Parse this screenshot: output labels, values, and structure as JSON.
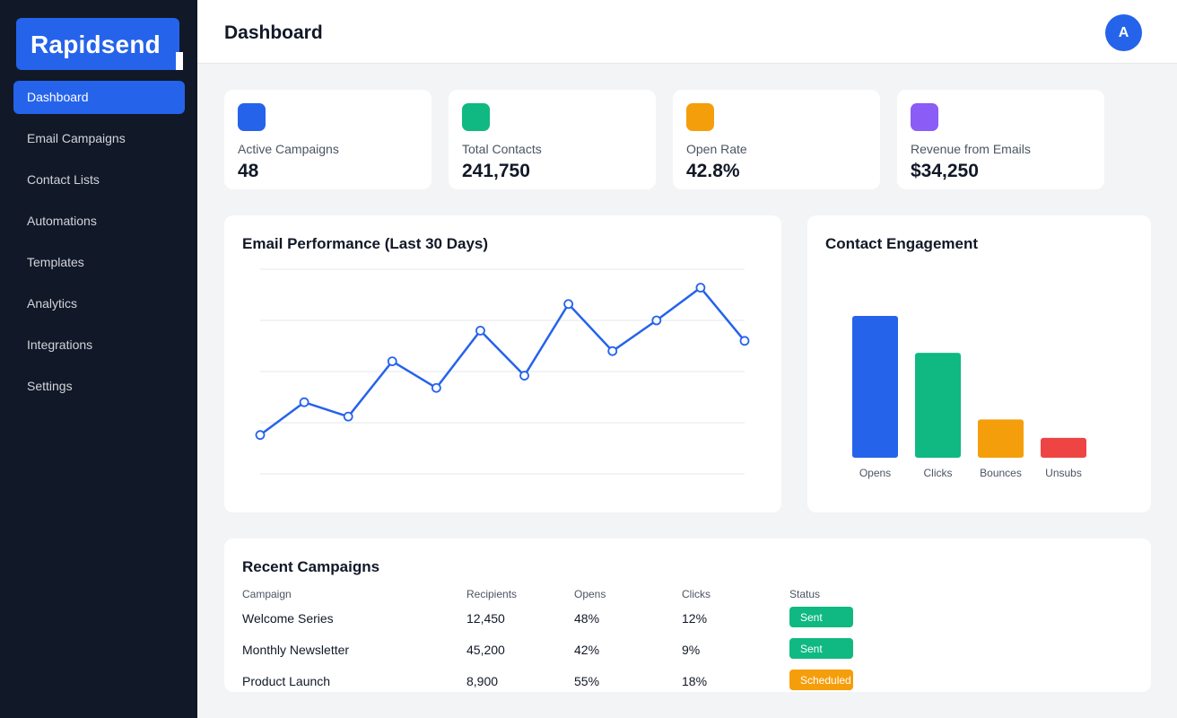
{
  "app": {
    "name": "Rapidsend"
  },
  "nav": {
    "items": [
      {
        "label": "Dashboard"
      },
      {
        "label": "Email Campaigns"
      },
      {
        "label": "Contact Lists"
      },
      {
        "label": "Automations"
      },
      {
        "label": "Templates"
      },
      {
        "label": "Analytics"
      },
      {
        "label": "Integrations"
      },
      {
        "label": "Settings"
      }
    ],
    "active_index": 0
  },
  "header": {
    "title": "Dashboard",
    "avatar_initial": "A"
  },
  "stats": [
    {
      "label": "Active Campaigns",
      "value": "48",
      "color": "#2563eb"
    },
    {
      "label": "Total Contacts",
      "value": "241,750",
      "color": "#10b981"
    },
    {
      "label": "Open Rate",
      "value": "42.8%",
      "color": "#f59e0b"
    },
    {
      "label": "Revenue from Emails",
      "value": "$34,250",
      "color": "#8b5cf6"
    }
  ],
  "performance": {
    "title": "Email Performance (Last 30 Days)"
  },
  "engagement": {
    "title": "Contact Engagement"
  },
  "chart_data": [
    {
      "type": "line",
      "title": "Email Performance (Last 30 Days)",
      "xlabel": "",
      "ylabel": "",
      "x": [
        1,
        2,
        3,
        4,
        5,
        6,
        7,
        8,
        9,
        10,
        11,
        12
      ],
      "series": [
        {
          "values": [
            19,
            35,
            28,
            55,
            42,
            70,
            48,
            83,
            60,
            75,
            91,
            65
          ],
          "color": "#2563eb"
        }
      ],
      "ylim": [
        0,
        100
      ],
      "grid": true,
      "markers": true
    },
    {
      "type": "bar",
      "title": "Contact Engagement",
      "categories": [
        "Opens",
        "Clicks",
        "Bounces",
        "Unsubs"
      ],
      "values": [
        100,
        74,
        27,
        14
      ],
      "colors": [
        "#2563eb",
        "#10b981",
        "#f59e0b",
        "#ef4444"
      ],
      "ylim": [
        0,
        100
      ]
    }
  ],
  "recent": {
    "title": "Recent Campaigns",
    "columns": [
      "Campaign",
      "Recipients",
      "Opens",
      "Clicks",
      "Status"
    ],
    "rows": [
      {
        "campaign": "Welcome Series",
        "recipients": "12,450",
        "opens": "48%",
        "clicks": "12%",
        "status": "Sent",
        "status_color": "#10b981"
      },
      {
        "campaign": "Monthly Newsletter",
        "recipients": "45,200",
        "opens": "42%",
        "clicks": "9%",
        "status": "Sent",
        "status_color": "#10b981"
      },
      {
        "campaign": "Product Launch",
        "recipients": "8,900",
        "opens": "55%",
        "clicks": "18%",
        "status": "Scheduled",
        "status_color": "#f59e0b"
      }
    ]
  }
}
